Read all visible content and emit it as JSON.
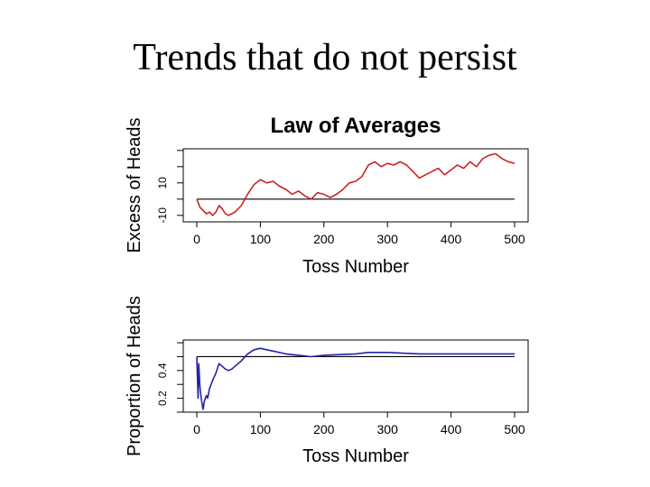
{
  "slide": {
    "title": "Trends that do not persist"
  },
  "chart_data": [
    {
      "type": "line",
      "title": "Law of Averages",
      "xlabel": "Toss Number",
      "ylabel": "Excess of Heads",
      "xlim": [
        0,
        500
      ],
      "ylim": [
        -14,
        31
      ],
      "xticks": [
        0,
        100,
        200,
        300,
        400,
        500
      ],
      "yticks": [
        -10,
        10
      ],
      "reference_line": 0,
      "line_color": "#cc2222",
      "series": [
        {
          "name": "Excess of Heads",
          "x": [
            0,
            5,
            10,
            15,
            20,
            25,
            30,
            35,
            40,
            45,
            50,
            55,
            60,
            70,
            80,
            90,
            100,
            110,
            120,
            130,
            140,
            150,
            160,
            170,
            180,
            190,
            200,
            210,
            220,
            230,
            240,
            250,
            260,
            270,
            280,
            290,
            300,
            310,
            320,
            330,
            340,
            350,
            360,
            370,
            380,
            390,
            400,
            410,
            420,
            430,
            440,
            450,
            460,
            470,
            480,
            490,
            500
          ],
          "y": [
            0,
            -5,
            -7,
            -9,
            -8,
            -10,
            -8,
            -4,
            -6,
            -9,
            -10,
            -9,
            -8,
            -4,
            3,
            9,
            12,
            10,
            11,
            8,
            6,
            3,
            5,
            2,
            0,
            4,
            3,
            1,
            3,
            6,
            10,
            11,
            14,
            21,
            23,
            20,
            22,
            21,
            23,
            21,
            17,
            13,
            15,
            17,
            19,
            15,
            18,
            21,
            19,
            23,
            20,
            25,
            27,
            28,
            25,
            23,
            22
          ]
        }
      ]
    },
    {
      "type": "line",
      "title": "",
      "xlabel": "Toss Number",
      "ylabel": "Proportion of Heads",
      "xlim": [
        0,
        500
      ],
      "ylim": [
        0.1,
        0.62
      ],
      "xticks": [
        0,
        100,
        200,
        300,
        400,
        500
      ],
      "yticks": [
        0.2,
        0.4
      ],
      "reference_line": 0.5,
      "line_color": "#2222aa",
      "series": [
        {
          "name": "Proportion of Heads",
          "x": [
            0,
            1,
            2,
            3,
            5,
            7,
            9,
            10,
            12,
            15,
            17,
            20,
            25,
            30,
            35,
            40,
            45,
            50,
            55,
            60,
            70,
            80,
            90,
            100,
            110,
            120,
            140,
            160,
            180,
            200,
            250,
            270,
            300,
            350,
            400,
            450,
            480,
            500
          ],
          "y": [
            0.5,
            0.35,
            0.2,
            0.45,
            0.28,
            0.2,
            0.14,
            0.12,
            0.18,
            0.22,
            0.2,
            0.27,
            0.33,
            0.38,
            0.45,
            0.43,
            0.41,
            0.4,
            0.41,
            0.43,
            0.47,
            0.52,
            0.55,
            0.56,
            0.55,
            0.54,
            0.52,
            0.51,
            0.5,
            0.51,
            0.52,
            0.53,
            0.53,
            0.52,
            0.52,
            0.52,
            0.52,
            0.52
          ]
        }
      ]
    }
  ]
}
